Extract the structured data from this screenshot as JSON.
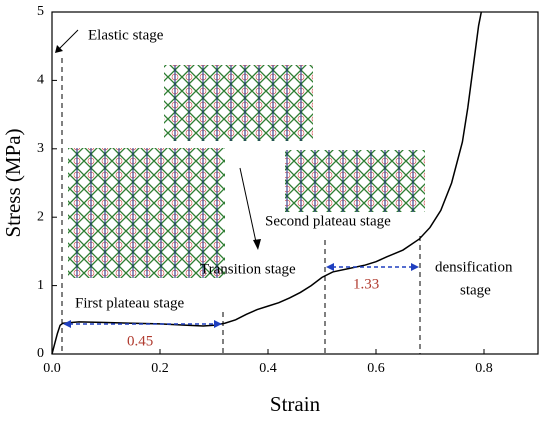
{
  "chart_data": {
    "type": "line",
    "xlabel": "Strain",
    "ylabel": "Stress (MPa)",
    "xlim": [
      0,
      0.9
    ],
    "ylim": [
      0,
      5
    ],
    "xticks": [
      {
        "value": 0,
        "label": "0.0"
      },
      0.2,
      0.4,
      0.6,
      0.8
    ],
    "yticks": [
      0,
      1,
      2,
      3,
      4,
      5
    ],
    "series": [
      {
        "color": "#000000",
        "x": [
          0,
          0.005,
          0.01,
          0.015,
          0.02,
          0.05,
          0.1,
          0.15,
          0.2,
          0.25,
          0.28,
          0.3,
          0.32,
          0.34,
          0.36,
          0.38,
          0.4,
          0.42,
          0.44,
          0.46,
          0.48,
          0.5,
          0.52,
          0.55,
          0.58,
          0.6,
          0.62,
          0.65,
          0.68,
          0.7,
          0.72,
          0.74,
          0.76,
          0.77,
          0.78,
          0.79,
          0.795
        ],
        "values": [
          0,
          0.15,
          0.3,
          0.42,
          0.45,
          0.47,
          0.46,
          0.45,
          0.44,
          0.42,
          0.41,
          0.42,
          0.45,
          0.5,
          0.58,
          0.65,
          0.7,
          0.75,
          0.82,
          0.9,
          1.0,
          1.12,
          1.2,
          1.25,
          1.3,
          1.35,
          1.42,
          1.52,
          1.68,
          1.85,
          2.1,
          2.5,
          3.1,
          3.6,
          4.2,
          4.8,
          5.0
        ]
      }
    ],
    "annotations": [
      "Elastic stage",
      "First plateau stage",
      "Transition stage",
      "Second plateau stage",
      "densification",
      "stage",
      "0.45",
      "1.33"
    ]
  }
}
